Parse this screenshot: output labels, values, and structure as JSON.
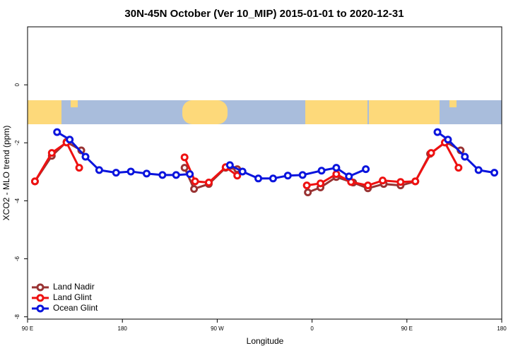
{
  "chart_data": {
    "type": "line",
    "title": "30N-45N October (Ver 10_MIP)   2015-01-01 to 2020-12-31",
    "xlabel": "Longitude",
    "ylabel": "XCO2 - MLO trend (ppm)",
    "xlim": [
      90,
      540
    ],
    "ylim": [
      -8.08,
      2
    ],
    "xticks": [
      {
        "value": 90,
        "label": "90 E"
      },
      180,
      {
        "value": 270,
        "label": "90 W"
      },
      {
        "value": 360,
        "label": "0"
      },
      {
        "value": 450,
        "label": "90 E"
      },
      {
        "value": 540,
        "label": "180"
      }
    ],
    "yticks": [
      0,
      -2,
      -4,
      -6,
      -8
    ],
    "legend": "bottom-left",
    "series": [
      {
        "name": "Land Nadir",
        "color": "#993333",
        "x": [
          97,
          113,
          127,
          141,
          null,
          239,
          248,
          262,
          278,
          289,
          null,
          356,
          368,
          383,
          399,
          413,
          428,
          444,
          458,
          472,
          487,
          501
        ],
        "values": [
          -3.33,
          -2.45,
          -1.97,
          -2.26,
          null,
          -2.86,
          -3.59,
          -3.42,
          -2.86,
          -2.91,
          null,
          -3.71,
          -3.54,
          -3.18,
          -3.37,
          -3.57,
          -3.42,
          -3.47,
          -3.33,
          -2.38,
          -1.97,
          -2.26
        ]
      },
      {
        "name": "Land Glint",
        "color": "#ee1111",
        "x": [
          97,
          113,
          127,
          139,
          null,
          239,
          249,
          262,
          278,
          289,
          null,
          355,
          368,
          383,
          397,
          413,
          427,
          444,
          458,
          473,
          486,
          499
        ],
        "values": [
          -3.33,
          -2.35,
          -1.99,
          -2.86,
          null,
          -2.5,
          -3.33,
          -3.37,
          -2.84,
          -3.13,
          null,
          -3.47,
          -3.4,
          -3.08,
          -3.35,
          -3.47,
          -3.3,
          -3.35,
          -3.33,
          -2.35,
          -1.99,
          -2.86
        ]
      },
      {
        "name": "Ocean Glint",
        "color": "#0a14dd",
        "x": [
          118,
          130,
          145,
          158,
          174,
          188,
          203,
          218,
          231,
          244,
          null,
          282,
          294,
          309,
          323,
          337,
          351,
          369,
          383,
          395,
          411,
          null,
          479,
          489,
          505,
          518,
          533
        ],
        "values": [
          -1.63,
          -1.89,
          -2.48,
          -2.94,
          -3.03,
          -2.99,
          -3.06,
          -3.11,
          -3.11,
          -3.08,
          null,
          -2.77,
          -2.99,
          -3.23,
          -3.23,
          -3.13,
          -3.11,
          -2.96,
          -2.86,
          -3.16,
          -2.91,
          null,
          -1.63,
          -1.89,
          -2.48,
          -2.94,
          -3.03
        ]
      }
    ]
  }
}
